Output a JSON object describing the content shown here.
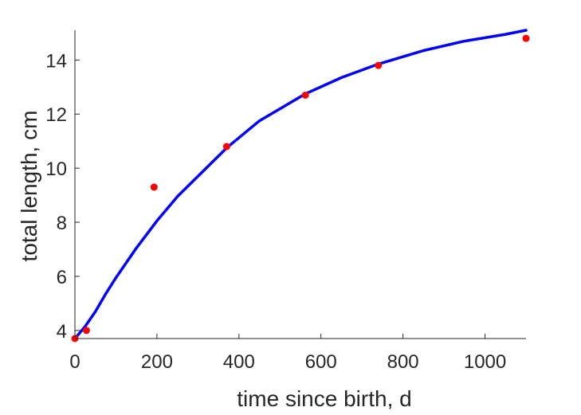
{
  "chart_data": {
    "type": "scatter",
    "xlabel": "time since birth, d",
    "ylabel": "total length, cm",
    "xlim": [
      0,
      1100
    ],
    "ylim": [
      3.7,
      15.1
    ],
    "xticks": [
      0,
      200,
      400,
      600,
      800,
      1000
    ],
    "yticks": [
      4,
      6,
      8,
      10,
      12,
      14
    ],
    "grid": false,
    "series": [
      {
        "kind": "points",
        "color": "#ff0000",
        "x": [
          0,
          28,
          193,
          370,
          562,
          740,
          1100
        ],
        "y": [
          3.7,
          4.0,
          9.3,
          10.8,
          12.7,
          13.8,
          14.8
        ]
      },
      {
        "kind": "line",
        "color": "#0000ff",
        "x": [
          0,
          25,
          50,
          75,
          100,
          150,
          200,
          250,
          300,
          370,
          450,
          562,
          650,
          740,
          850,
          950,
          1050,
          1100
        ],
        "y": [
          3.7,
          4.15,
          4.7,
          5.35,
          5.95,
          7.05,
          8.05,
          8.95,
          9.7,
          10.75,
          11.75,
          12.75,
          13.35,
          13.85,
          14.35,
          14.7,
          14.95,
          15.1
        ]
      }
    ]
  }
}
